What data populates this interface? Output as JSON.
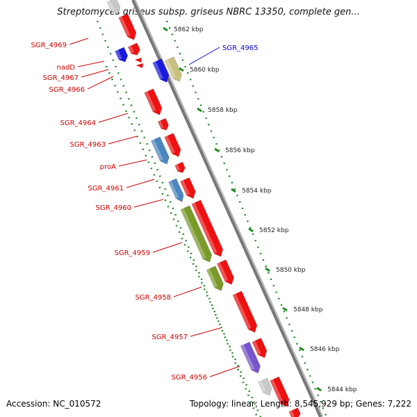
{
  "title": "Streptomyces griseus subsp. griseus NBRC 13350, complete gen...",
  "footer": {
    "accession": "Accession: NC_010572",
    "summary": "Topology: linear; Length: 8,545,929 bp; Genes: 7,222"
  },
  "colors": {
    "gene_red": "#ee1111",
    "gene_blue": "#1a1ae0",
    "gene_steel": "#4a86c0",
    "gene_olive": "#7a9a2a",
    "gene_khaki": "#c8c080",
    "gene_violet": "#7755cc",
    "gene_gray": "#c8c8c8",
    "label_red": "#cc0000",
    "label_blue": "#0000cc",
    "ruler_green": "#228b22",
    "axis_gray": "#777777"
  },
  "scale_labels": [
    "5862 kbp",
    "5860 kbp",
    "5858 kbp",
    "5856 kbp",
    "5854 kbp",
    "5852 kbp",
    "5850 kbp",
    "5848 kbp",
    "5846 kbp",
    "5844 kbp"
  ],
  "gene_labels": [
    {
      "text": "SGR_4969",
      "color": "red"
    },
    {
      "text": "nadD",
      "color": "red"
    },
    {
      "text": "SGR_4967",
      "color": "red"
    },
    {
      "text": "SGR_4966",
      "color": "red"
    },
    {
      "text": "SGR_4964",
      "color": "red"
    },
    {
      "text": "SGR_4963",
      "color": "red"
    },
    {
      "text": "proA",
      "color": "red"
    },
    {
      "text": "SGR_4961",
      "color": "red"
    },
    {
      "text": "SGR_4960",
      "color": "red"
    },
    {
      "text": "SGR_4959",
      "color": "red"
    },
    {
      "text": "SGR_4958",
      "color": "red"
    },
    {
      "text": "SGR_4957",
      "color": "red"
    },
    {
      "text": "SGR_4956",
      "color": "red"
    },
    {
      "text": "SGR_4965",
      "color": "blue"
    }
  ]
}
